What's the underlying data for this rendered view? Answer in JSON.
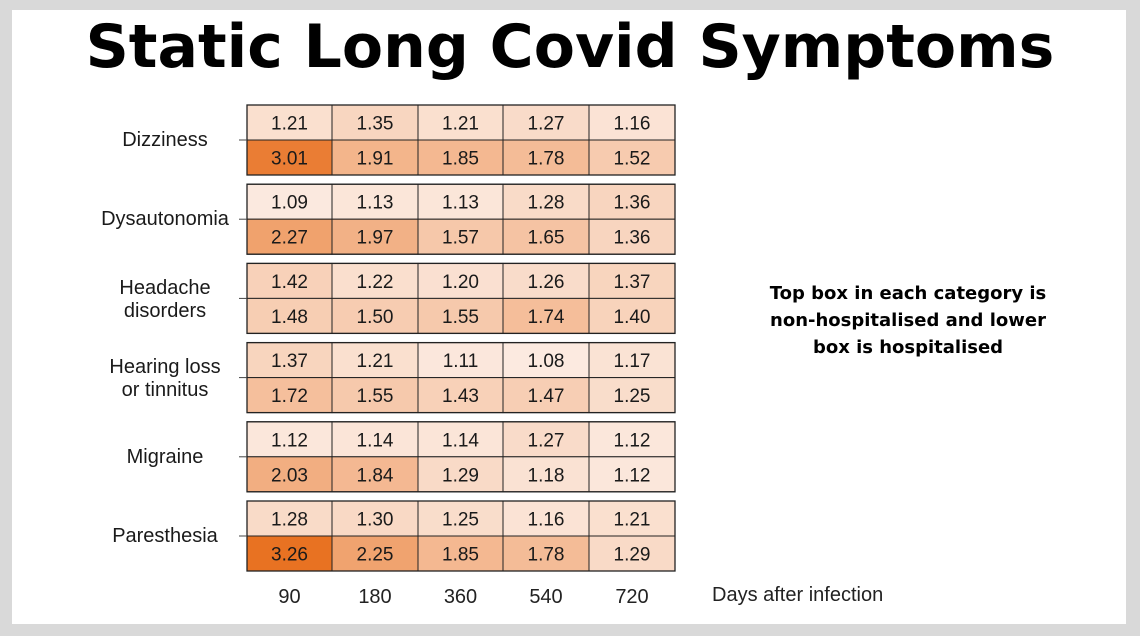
{
  "title": "Static Long Covid Symptoms",
  "note": "Top box in each category is non-hospitalised and lower box is hospitalised",
  "chart_data": {
    "type": "heatmap",
    "title": "Static Long Covid Symptoms",
    "x": [
      "90",
      "180",
      "360",
      "540",
      "720"
    ],
    "xlabel": "Days after infection",
    "categories": [
      {
        "label_lines": [
          "Dizziness"
        ],
        "non_hospitalised": [
          1.21,
          1.35,
          1.21,
          1.27,
          1.16
        ],
        "hospitalised": [
          3.01,
          1.91,
          1.85,
          1.78,
          1.52
        ]
      },
      {
        "label_lines": [
          "Dysautonomia"
        ],
        "non_hospitalised": [
          1.09,
          1.13,
          1.13,
          1.28,
          1.36
        ],
        "hospitalised": [
          2.27,
          1.97,
          1.57,
          1.65,
          1.36
        ]
      },
      {
        "label_lines": [
          "Headache",
          "disorders"
        ],
        "non_hospitalised": [
          1.42,
          1.22,
          1.2,
          1.26,
          1.37
        ],
        "hospitalised": [
          1.48,
          1.5,
          1.55,
          1.74,
          1.4
        ]
      },
      {
        "label_lines": [
          "Hearing loss",
          "or tinnitus"
        ],
        "non_hospitalised": [
          1.37,
          1.21,
          1.11,
          1.08,
          1.17
        ],
        "hospitalised": [
          1.72,
          1.55,
          1.43,
          1.47,
          1.25
        ]
      },
      {
        "label_lines": [
          "Migraine"
        ],
        "non_hospitalised": [
          1.12,
          1.14,
          1.14,
          1.27,
          1.12
        ],
        "hospitalised": [
          2.03,
          1.84,
          1.29,
          1.18,
          1.12
        ]
      },
      {
        "label_lines": [
          "Paresthesia"
        ],
        "non_hospitalised": [
          1.28,
          1.3,
          1.25,
          1.16,
          1.21
        ],
        "hospitalised": [
          3.26,
          2.25,
          1.85,
          1.78,
          1.29
        ]
      }
    ],
    "color_low": "#fdf3ee",
    "color_high": "#e8701f",
    "value_range": [
      1.0,
      3.3
    ]
  }
}
